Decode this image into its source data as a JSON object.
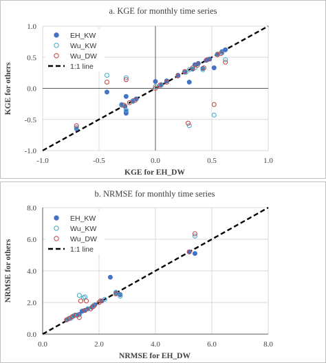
{
  "chart_data": [
    {
      "type": "scatter",
      "title": "a. KGE for monthly time series",
      "xlabel": "KGE for EH_DW",
      "ylabel": "KGE for others",
      "xlim": [
        -1.0,
        1.0
      ],
      "ylim": [
        -1.0,
        1.0
      ],
      "xticks": [
        "-1.0",
        "-0.5",
        "0.0",
        "0.5",
        "1.0"
      ],
      "yticks": [
        "-1.0",
        "-0.5",
        "0.0",
        "0.5",
        "1.0"
      ],
      "grid": true,
      "legend_position": "top-left",
      "series": [
        {
          "name": "EH_KW",
          "marker": "filled-circle",
          "color": "#4472c4",
          "points": [
            [
              -0.7,
              -0.65
            ],
            [
              -0.43,
              -0.06
            ],
            [
              -0.3,
              -0.27
            ],
            [
              -0.27,
              -0.29
            ],
            [
              -0.26,
              -0.37
            ],
            [
              -0.26,
              -0.4
            ],
            [
              -0.26,
              -0.13
            ],
            [
              -0.2,
              -0.2
            ],
            [
              -0.17,
              -0.17
            ],
            [
              0.0,
              0.11
            ],
            [
              0.05,
              0.06
            ],
            [
              0.1,
              0.12
            ],
            [
              0.2,
              0.21
            ],
            [
              0.26,
              0.26
            ],
            [
              0.3,
              0.1
            ],
            [
              0.33,
              0.31
            ],
            [
              0.35,
              0.38
            ],
            [
              0.38,
              0.4
            ],
            [
              0.42,
              0.32
            ],
            [
              0.45,
              0.45
            ],
            [
              0.48,
              0.47
            ],
            [
              0.52,
              0.33
            ],
            [
              0.55,
              0.55
            ],
            [
              0.59,
              0.59
            ],
            [
              0.62,
              0.62
            ]
          ]
        },
        {
          "name": "Wu_KW",
          "marker": "open-circle",
          "color": "#4bacc6",
          "points": [
            [
              -0.7,
              -0.63
            ],
            [
              -0.43,
              0.21
            ],
            [
              -0.26,
              0.17
            ],
            [
              -0.3,
              -0.26
            ],
            [
              -0.26,
              -0.35
            ],
            [
              -0.2,
              -0.21
            ],
            [
              0.0,
              0.03
            ],
            [
              0.05,
              0.05
            ],
            [
              0.27,
              0.26
            ],
            [
              0.3,
              0.3
            ],
            [
              0.35,
              0.33
            ],
            [
              0.42,
              0.3
            ],
            [
              0.3,
              -0.6
            ],
            [
              0.52,
              -0.43
            ],
            [
              0.55,
              0.55
            ],
            [
              0.59,
              0.57
            ],
            [
              0.62,
              0.46
            ]
          ]
        },
        {
          "name": "Wu_DW",
          "marker": "open-circle",
          "color": "#c0504d",
          "points": [
            [
              -0.7,
              -0.6
            ],
            [
              -0.43,
              0.1
            ],
            [
              -0.26,
              0.14
            ],
            [
              -0.28,
              -0.27
            ],
            [
              -0.23,
              -0.23
            ],
            [
              -0.18,
              -0.19
            ],
            [
              0.0,
              0.0
            ],
            [
              0.04,
              0.05
            ],
            [
              0.1,
              0.1
            ],
            [
              0.2,
              0.2
            ],
            [
              0.26,
              0.27
            ],
            [
              0.29,
              -0.56
            ],
            [
              0.33,
              0.33
            ],
            [
              0.37,
              0.37
            ],
            [
              0.43,
              0.33
            ],
            [
              0.46,
              0.46
            ],
            [
              0.52,
              -0.26
            ],
            [
              0.55,
              0.54
            ],
            [
              0.58,
              0.56
            ],
            [
              0.62,
              0.42
            ]
          ]
        },
        {
          "name": "1:1 line",
          "marker": "dashed-line",
          "color": "#000000",
          "points": [
            [
              -1.0,
              -1.0
            ],
            [
              1.0,
              1.0
            ]
          ]
        }
      ]
    },
    {
      "type": "scatter",
      "title": "b. NRMSE for monthly time series",
      "xlabel": "NRMSE for EH_DW",
      "ylabel": "NRMSE for others",
      "xlim": [
        0.0,
        8.0
      ],
      "ylim": [
        0.0,
        8.0
      ],
      "xticks": [
        "0.0",
        "2.0",
        "4.0",
        "6.0",
        "8.0"
      ],
      "yticks": [
        "0.0",
        "2.0",
        "4.0",
        "6.0",
        "8.0"
      ],
      "grid": true,
      "legend_position": "top-left",
      "series": [
        {
          "name": "EH_KW",
          "marker": "filled-circle",
          "color": "#4472c4",
          "points": [
            [
              0.85,
              0.9
            ],
            [
              0.95,
              1.0
            ],
            [
              1.05,
              1.1
            ],
            [
              1.15,
              1.2
            ],
            [
              1.3,
              1.25
            ],
            [
              1.4,
              1.45
            ],
            [
              1.5,
              1.5
            ],
            [
              1.6,
              1.6
            ],
            [
              1.75,
              1.7
            ],
            [
              1.85,
              1.85
            ],
            [
              2.1,
              2.1
            ],
            [
              2.4,
              3.6
            ],
            [
              2.6,
              2.6
            ],
            [
              2.75,
              2.5
            ],
            [
              5.2,
              5.2
            ],
            [
              5.4,
              5.1
            ]
          ]
        },
        {
          "name": "Wu_KW",
          "marker": "open-circle",
          "color": "#4bacc6",
          "points": [
            [
              0.9,
              0.95
            ],
            [
              1.0,
              1.0
            ],
            [
              1.1,
              1.15
            ],
            [
              1.25,
              1.2
            ],
            [
              1.3,
              2.45
            ],
            [
              1.45,
              2.3
            ],
            [
              1.5,
              2.35
            ],
            [
              1.6,
              1.6
            ],
            [
              1.8,
              1.8
            ],
            [
              2.0,
              2.0
            ],
            [
              2.2,
              2.2
            ],
            [
              2.6,
              2.65
            ],
            [
              2.75,
              2.4
            ],
            [
              5.4,
              6.2
            ]
          ]
        },
        {
          "name": "Wu_DW",
          "marker": "open-circle",
          "color": "#c0504d",
          "points": [
            [
              0.85,
              0.9
            ],
            [
              0.95,
              1.0
            ],
            [
              1.05,
              1.1
            ],
            [
              1.2,
              1.2
            ],
            [
              1.3,
              1.05
            ],
            [
              1.35,
              2.1
            ],
            [
              1.5,
              1.5
            ],
            [
              1.55,
              2.1
            ],
            [
              1.7,
              1.6
            ],
            [
              1.8,
              1.75
            ],
            [
              2.0,
              2.0
            ],
            [
              2.05,
              2.1
            ],
            [
              2.6,
              2.55
            ],
            [
              5.2,
              5.2
            ],
            [
              5.4,
              6.35
            ]
          ]
        },
        {
          "name": "1:1 line",
          "marker": "dashed-line",
          "color": "#000000",
          "points": [
            [
              0.0,
              0.0
            ],
            [
              8.0,
              8.0
            ]
          ]
        }
      ]
    }
  ]
}
